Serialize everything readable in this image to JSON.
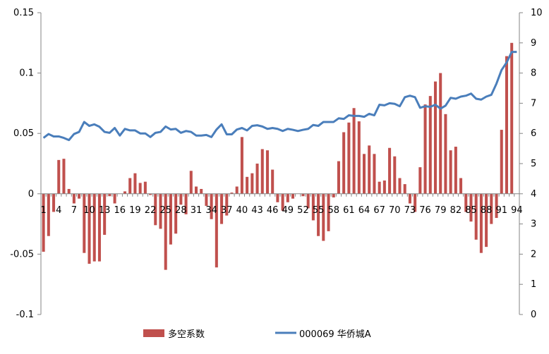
{
  "chart_data": {
    "type": "bar",
    "title": "",
    "xlabel": "",
    "ylabel": "",
    "x": [
      1,
      2,
      3,
      4,
      5,
      6,
      7,
      8,
      9,
      10,
      11,
      12,
      13,
      14,
      15,
      16,
      17,
      18,
      19,
      20,
      21,
      22,
      23,
      24,
      25,
      26,
      27,
      28,
      29,
      30,
      31,
      32,
      33,
      34,
      35,
      36,
      37,
      38,
      39,
      40,
      41,
      42,
      43,
      44,
      45,
      46,
      47,
      48,
      49,
      50,
      51,
      52,
      53,
      54,
      55,
      56,
      57,
      58,
      59,
      60,
      61,
      62,
      63,
      64,
      65,
      66,
      67,
      68,
      69,
      70,
      71,
      72,
      73,
      74,
      75,
      76,
      77,
      78,
      79,
      80,
      81,
      82,
      83,
      84,
      85,
      86,
      87,
      88,
      89,
      90,
      91,
      92,
      93,
      94
    ],
    "xtick_labels": [
      "1",
      "4",
      "7",
      "10",
      "13",
      "16",
      "19",
      "22",
      "25",
      "28",
      "31",
      "34",
      "37",
      "40",
      "43",
      "46",
      "49",
      "52",
      "55",
      "58",
      "61",
      "64",
      "67",
      "70",
      "73",
      "76",
      "79",
      "82",
      "85",
      "88",
      "91",
      "94"
    ],
    "y_left": {
      "ylim": [
        -0.1,
        0.15
      ],
      "ticks": [
        "-0.1",
        "-0.05",
        "0",
        "0.05",
        "0.1",
        "0.15"
      ]
    },
    "y_right": {
      "ylim": [
        0,
        10
      ],
      "ticks": [
        "0",
        "1",
        "2",
        "3",
        "4",
        "5",
        "6",
        "7",
        "8",
        "9",
        "10"
      ]
    },
    "series": [
      {
        "name": "多空系数",
        "type": "bar",
        "axis": "left",
        "color": "#c0504d",
        "values": [
          -0.048,
          -0.035,
          -0.015,
          0.028,
          0.029,
          0.004,
          -0.008,
          -0.004,
          -0.049,
          -0.058,
          -0.056,
          -0.056,
          -0.034,
          -0.002,
          -0.008,
          0.0,
          0.002,
          0.013,
          0.017,
          0.009,
          0.01,
          -0.001,
          -0.026,
          -0.029,
          -0.063,
          -0.042,
          -0.033,
          -0.009,
          -0.017,
          0.019,
          0.006,
          0.004,
          -0.01,
          -0.021,
          -0.061,
          -0.025,
          -0.018,
          0.001,
          0.006,
          0.047,
          0.014,
          0.017,
          0.025,
          0.037,
          0.036,
          0.02,
          -0.007,
          -0.014,
          -0.007,
          -0.004,
          0.0,
          -0.002,
          -0.012,
          -0.022,
          -0.035,
          -0.039,
          -0.031,
          -0.003,
          0.027,
          0.051,
          0.059,
          0.071,
          0.06,
          0.033,
          0.04,
          0.033,
          0.01,
          0.011,
          0.038,
          0.031,
          0.013,
          0.008,
          -0.008,
          -0.015,
          0.022,
          0.074,
          0.081,
          0.093,
          0.1,
          0.066,
          0.036,
          0.039,
          0.013,
          -0.015,
          -0.023,
          -0.038,
          -0.049,
          -0.044,
          -0.025,
          -0.02,
          0.053,
          0.114,
          0.125,
          0.0
        ]
      },
      {
        "name": "000069 华侨城A",
        "type": "line",
        "axis": "right",
        "color": "#4a7ebb",
        "values": [
          5.85,
          5.98,
          5.9,
          5.9,
          5.85,
          5.78,
          5.98,
          6.05,
          6.38,
          6.25,
          6.3,
          6.22,
          6.05,
          6.02,
          6.18,
          5.93,
          6.15,
          6.1,
          6.1,
          6.0,
          6.0,
          5.88,
          6.02,
          6.05,
          6.23,
          6.13,
          6.15,
          6.02,
          6.08,
          6.05,
          5.93,
          5.93,
          5.95,
          5.88,
          6.13,
          6.3,
          5.97,
          5.97,
          6.13,
          6.18,
          6.1,
          6.25,
          6.27,
          6.23,
          6.15,
          6.18,
          6.15,
          6.08,
          6.15,
          6.12,
          6.08,
          6.12,
          6.15,
          6.28,
          6.25,
          6.38,
          6.38,
          6.38,
          6.5,
          6.48,
          6.6,
          6.58,
          6.58,
          6.55,
          6.65,
          6.6,
          6.95,
          6.93,
          7.0,
          6.98,
          6.9,
          7.2,
          7.25,
          7.2,
          6.85,
          6.9,
          6.88,
          6.95,
          6.82,
          6.92,
          7.18,
          7.15,
          7.22,
          7.25,
          7.32,
          7.15,
          7.12,
          7.22,
          7.28,
          7.65,
          8.1,
          8.35,
          8.7,
          8.7
        ]
      }
    ],
    "legend": {
      "position": "bottom",
      "entries": [
        "多空系数",
        "000069 华侨城A"
      ]
    },
    "grid": false
  }
}
